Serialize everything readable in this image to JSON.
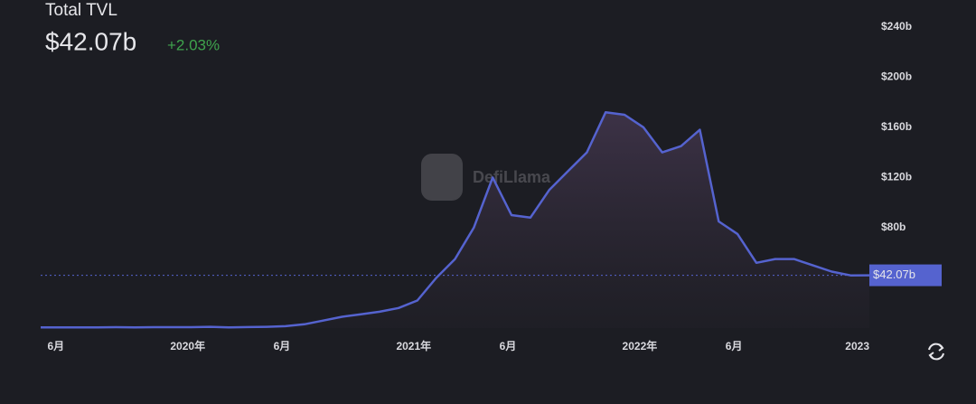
{
  "chart_data": {
    "type": "area",
    "title": "Total TVL",
    "marker": {
      "value": 42.07,
      "label": "$42.07b"
    },
    "change": {
      "value": 2.03,
      "label": "+2.03%"
    },
    "watermark": "DefiLlama",
    "color": "#5563cf",
    "x": [
      "2019-05",
      "2019-06",
      "2019-07",
      "2019-08",
      "2019-09",
      "2019-10",
      "2019-11",
      "2019-12",
      "2020-01",
      "2020-02",
      "2020-03",
      "2020-04",
      "2020-05",
      "2020-06",
      "2020-07",
      "2020-08",
      "2020-09",
      "2020-10",
      "2020-11",
      "2020-12",
      "2021-01",
      "2021-02",
      "2021-03",
      "2021-04",
      "2021-05",
      "2021-06",
      "2021-07",
      "2021-08",
      "2021-09",
      "2021-10",
      "2021-11",
      "2021-12",
      "2022-01",
      "2022-02",
      "2022-03",
      "2022-04",
      "2022-05",
      "2022-06",
      "2022-07",
      "2022-08",
      "2022-09",
      "2022-10",
      "2022-11",
      "2022-12",
      "2023-01"
    ],
    "values": [
      0.5,
      0.6,
      0.6,
      0.6,
      0.7,
      0.6,
      0.7,
      0.7,
      0.7,
      1,
      0.6,
      0.8,
      1,
      1.5,
      3,
      6,
      9,
      11,
      13,
      16,
      22,
      40,
      55,
      80,
      120,
      90,
      88,
      110,
      125,
      140,
      172,
      170,
      160,
      140,
      145,
      158,
      85,
      75,
      52,
      55,
      55,
      50,
      45,
      42,
      42.07
    ],
    "xlim": [
      "2019-05",
      "2023-01"
    ],
    "xticks": [
      {
        "value": "2019-06",
        "label": "6月"
      },
      {
        "value": "2020-01",
        "label": "2020年"
      },
      {
        "value": "2020-06",
        "label": "6月"
      },
      {
        "value": "2021-01",
        "label": "2021年"
      },
      {
        "value": "2021-06",
        "label": "6月"
      },
      {
        "value": "2022-01",
        "label": "2022年"
      },
      {
        "value": "2022-06",
        "label": "6月"
      },
      {
        "value": "2023-01",
        "label": "2023"
      }
    ],
    "ylim": [
      0,
      260
    ],
    "yticks": [
      {
        "value": 80,
        "label": "$80b"
      },
      {
        "value": 120,
        "label": "$120b"
      },
      {
        "value": 160,
        "label": "$160b"
      },
      {
        "value": 200,
        "label": "$200b"
      },
      {
        "value": 240,
        "label": "$240b"
      }
    ]
  }
}
